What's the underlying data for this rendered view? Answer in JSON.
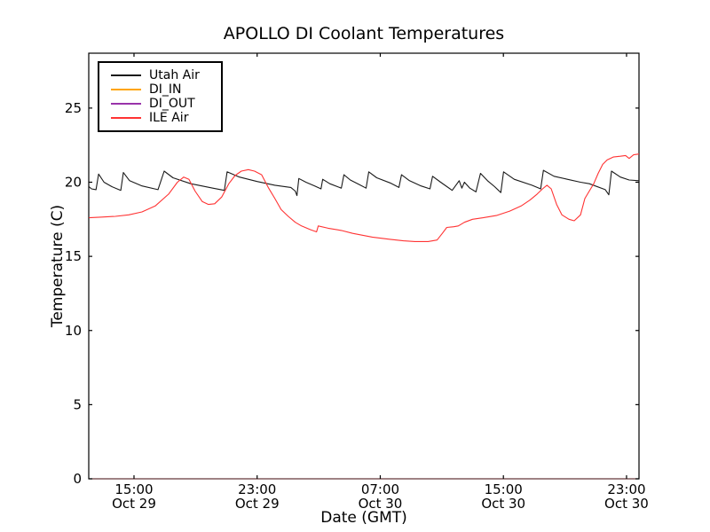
{
  "window": {
    "background": "#ffffff"
  },
  "chart_data": {
    "type": "line",
    "title": "APOLLO DI Coolant Temperatures",
    "xlabel": "Date (GMT)",
    "ylabel": "Temperature (C)",
    "x_unit": "hours since Oct 29 00:00 GMT",
    "xlim": [
      12.06,
      47.81
    ],
    "ylim": [
      0,
      28.7
    ],
    "yticks": [
      0,
      5,
      10,
      15,
      20,
      25
    ],
    "xticks": [
      {
        "hour": 15,
        "time": "15:00",
        "date": "Oct 29"
      },
      {
        "hour": 23,
        "time": "23:00",
        "date": "Oct 29"
      },
      {
        "hour": 31,
        "time": "07:00",
        "date": "Oct 30"
      },
      {
        "hour": 39,
        "time": "15:00",
        "date": "Oct 30"
      },
      {
        "hour": 47,
        "time": "23:00",
        "date": "Oct 30"
      }
    ],
    "grid": false,
    "frame_color": "#000000",
    "legend": {
      "position": "upper-left",
      "border_color": "#000000",
      "background": "#ffffff"
    },
    "series": [
      {
        "name": "Utah Air",
        "color": "#1a1a1a",
        "points": [
          [
            12.07,
            19.7
          ],
          [
            12.24,
            19.55
          ],
          [
            12.53,
            19.5
          ],
          [
            12.7,
            20.55
          ],
          [
            13.05,
            20.0
          ],
          [
            13.56,
            19.7
          ],
          [
            14.14,
            19.45
          ],
          [
            14.31,
            20.65
          ],
          [
            14.71,
            20.1
          ],
          [
            15.52,
            19.75
          ],
          [
            16.56,
            19.5
          ],
          [
            16.96,
            20.75
          ],
          [
            17.53,
            20.3
          ],
          [
            18.69,
            19.9
          ],
          [
            20.12,
            19.6
          ],
          [
            20.87,
            19.45
          ],
          [
            21.05,
            20.7
          ],
          [
            21.85,
            20.35
          ],
          [
            23.0,
            20.05
          ],
          [
            24.15,
            19.8
          ],
          [
            25.19,
            19.65
          ],
          [
            25.48,
            19.4
          ],
          [
            25.59,
            19.1
          ],
          [
            25.71,
            20.25
          ],
          [
            26.17,
            20.0
          ],
          [
            26.74,
            19.75
          ],
          [
            27.15,
            19.55
          ],
          [
            27.26,
            20.2
          ],
          [
            27.72,
            19.9
          ],
          [
            28.47,
            19.6
          ],
          [
            28.64,
            20.5
          ],
          [
            29.05,
            20.15
          ],
          [
            29.62,
            19.85
          ],
          [
            30.08,
            19.6
          ],
          [
            30.25,
            20.7
          ],
          [
            30.77,
            20.3
          ],
          [
            31.64,
            19.95
          ],
          [
            32.21,
            19.65
          ],
          [
            32.38,
            20.5
          ],
          [
            32.9,
            20.1
          ],
          [
            33.65,
            19.75
          ],
          [
            34.23,
            19.55
          ],
          [
            34.4,
            20.4
          ],
          [
            34.92,
            20.0
          ],
          [
            35.67,
            19.45
          ],
          [
            36.13,
            20.1
          ],
          [
            36.3,
            19.6
          ],
          [
            36.47,
            20.0
          ],
          [
            36.82,
            19.6
          ],
          [
            37.22,
            19.35
          ],
          [
            37.51,
            20.6
          ],
          [
            37.97,
            20.1
          ],
          [
            38.43,
            19.7
          ],
          [
            38.83,
            19.3
          ],
          [
            39.01,
            20.7
          ],
          [
            39.7,
            20.2
          ],
          [
            40.85,
            19.8
          ],
          [
            41.42,
            19.55
          ],
          [
            41.6,
            20.8
          ],
          [
            42.29,
            20.4
          ],
          [
            43.15,
            20.2
          ],
          [
            44.01,
            20.0
          ],
          [
            44.58,
            19.9
          ],
          [
            45.62,
            19.5
          ],
          [
            45.85,
            19.15
          ],
          [
            46.02,
            20.75
          ],
          [
            46.6,
            20.35
          ],
          [
            47.17,
            20.15
          ],
          [
            47.81,
            20.1
          ]
        ]
      },
      {
        "name": "DI_IN",
        "color": "#ffa500",
        "opacity": 0.35,
        "points": [
          [
            12.07,
            0
          ],
          [
            47.81,
            0
          ]
        ]
      },
      {
        "name": "DI_OUT",
        "color": "#9933aa",
        "opacity": 0.35,
        "points": [
          [
            12.07,
            0
          ],
          [
            47.81,
            0
          ]
        ]
      },
      {
        "name": "ILE Air",
        "color": "#ff3333",
        "points": [
          [
            12.07,
            17.6
          ],
          [
            12.93,
            17.65
          ],
          [
            13.79,
            17.7
          ],
          [
            14.66,
            17.8
          ],
          [
            15.52,
            18.0
          ],
          [
            16.38,
            18.4
          ],
          [
            17.25,
            19.2
          ],
          [
            17.82,
            20.0
          ],
          [
            18.23,
            20.35
          ],
          [
            18.57,
            20.2
          ],
          [
            18.97,
            19.4
          ],
          [
            19.43,
            18.7
          ],
          [
            19.84,
            18.5
          ],
          [
            20.24,
            18.55
          ],
          [
            20.7,
            19.0
          ],
          [
            21.16,
            19.9
          ],
          [
            21.56,
            20.45
          ],
          [
            21.97,
            20.75
          ],
          [
            22.43,
            20.85
          ],
          [
            22.83,
            20.75
          ],
          [
            23.29,
            20.5
          ],
          [
            23.75,
            19.6
          ],
          [
            24.15,
            18.9
          ],
          [
            24.56,
            18.15
          ],
          [
            25.02,
            17.7
          ],
          [
            25.48,
            17.3
          ],
          [
            25.88,
            17.05
          ],
          [
            26.46,
            16.8
          ],
          [
            26.86,
            16.65
          ],
          [
            26.97,
            17.05
          ],
          [
            27.61,
            16.9
          ],
          [
            28.47,
            16.75
          ],
          [
            29.21,
            16.55
          ],
          [
            30.48,
            16.3
          ],
          [
            31.64,
            16.15
          ],
          [
            32.5,
            16.05
          ],
          [
            33.25,
            16.0
          ],
          [
            34.11,
            16.0
          ],
          [
            34.69,
            16.1
          ],
          [
            35.03,
            16.55
          ],
          [
            35.32,
            16.95
          ],
          [
            35.78,
            17.0
          ],
          [
            36.07,
            17.05
          ],
          [
            36.47,
            17.3
          ],
          [
            36.99,
            17.5
          ],
          [
            37.68,
            17.6
          ],
          [
            38.54,
            17.75
          ],
          [
            39.41,
            18.05
          ],
          [
            40.15,
            18.4
          ],
          [
            40.73,
            18.8
          ],
          [
            41.19,
            19.2
          ],
          [
            41.54,
            19.55
          ],
          [
            41.83,
            19.8
          ],
          [
            42.11,
            19.55
          ],
          [
            42.46,
            18.5
          ],
          [
            42.8,
            17.8
          ],
          [
            43.26,
            17.5
          ],
          [
            43.6,
            17.4
          ],
          [
            44.01,
            17.8
          ],
          [
            44.29,
            18.9
          ],
          [
            44.58,
            19.4
          ],
          [
            44.87,
            19.9
          ],
          [
            45.16,
            20.6
          ],
          [
            45.45,
            21.2
          ],
          [
            45.74,
            21.5
          ],
          [
            46.14,
            21.7
          ],
          [
            46.6,
            21.75
          ],
          [
            46.94,
            21.8
          ],
          [
            47.17,
            21.6
          ],
          [
            47.46,
            21.85
          ],
          [
            47.81,
            21.9
          ]
        ]
      }
    ]
  }
}
